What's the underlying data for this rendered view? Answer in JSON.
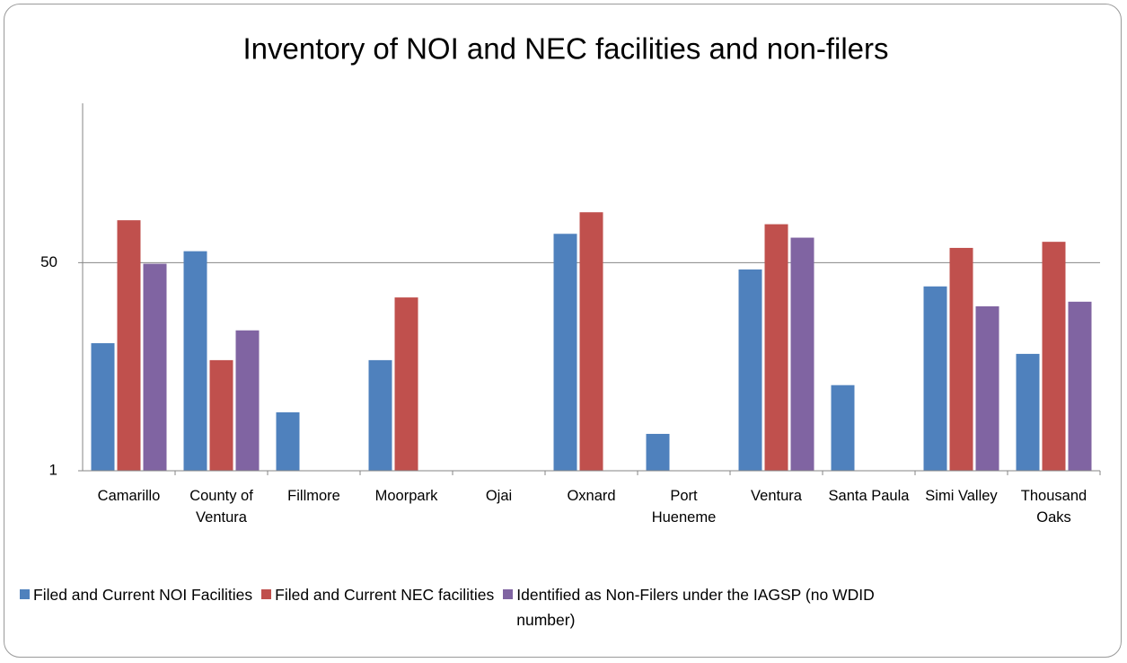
{
  "chart_data": {
    "type": "bar",
    "title": "Inventory of NOI and NEC facilities and non-filers",
    "categories": [
      "Camarillo",
      "County of Ventura",
      "Fillmore",
      "Moorpark",
      "Ojai",
      "Oxnard",
      "Port Hueneme",
      "Ventura",
      "Santa Paula",
      "Simi Valley",
      "Thousand Oaks"
    ],
    "series": [
      {
        "name": "Filed and Current NOI Facilities",
        "color": "#4f81bd",
        "values": [
          11,
          62,
          3,
          8,
          null,
          86,
          2,
          44,
          5,
          32,
          9
        ]
      },
      {
        "name": "Filed and Current NEC facilities",
        "color": "#c0504d",
        "values": [
          111,
          8,
          null,
          26,
          null,
          129,
          null,
          103,
          null,
          66,
          74
        ]
      },
      {
        "name": "Identified as Non-Filers under the IAGSP (no WDID number)",
        "color": "#8064a2",
        "values": [
          49,
          14,
          null,
          null,
          null,
          null,
          null,
          80,
          null,
          22,
          24
        ]
      }
    ],
    "ylim": [
      1,
      1000
    ],
    "yticks": [
      1,
      50
    ],
    "log_scale": true,
    "grid": true,
    "legend": "bottom"
  }
}
